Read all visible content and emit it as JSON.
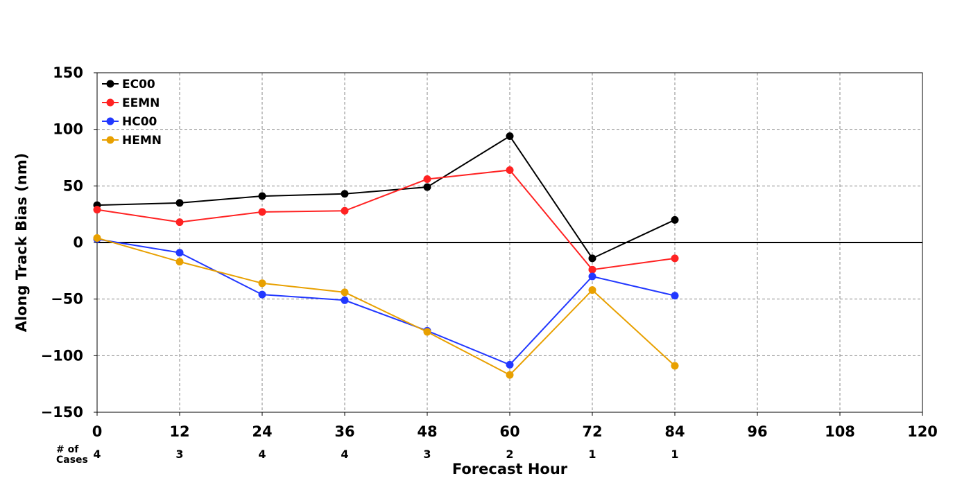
{
  "chart_data": {
    "type": "line",
    "xlabel": "Forecast Hour",
    "ylabel": "Along Track Bias (nm)",
    "xlim": [
      0,
      120
    ],
    "ylim": [
      -150,
      150
    ],
    "x_ticks": [
      0,
      12,
      24,
      36,
      48,
      60,
      72,
      84,
      96,
      108,
      120
    ],
    "y_ticks": [
      -150,
      -100,
      -50,
      0,
      50,
      100,
      150
    ],
    "grid": true,
    "legend_position": "top-left",
    "x": [
      0,
      12,
      24,
      36,
      48,
      60,
      72,
      84
    ],
    "series": [
      {
        "name": "EC00",
        "color": "#000000",
        "values": [
          33,
          35,
          41,
          43,
          49,
          94,
          -14,
          20
        ]
      },
      {
        "name": "EEMN",
        "color": "#ff2222",
        "values": [
          29,
          18,
          27,
          28,
          56,
          64,
          -24,
          -14
        ]
      },
      {
        "name": "HC00",
        "color": "#2238ff",
        "values": [
          3,
          -9,
          -46,
          -51,
          -78,
          -108,
          -30,
          -47
        ]
      },
      {
        "name": "HEMN",
        "color": "#e8a000",
        "values": [
          4,
          -17,
          -36,
          -44,
          -79,
          -117,
          -42,
          -109
        ]
      }
    ],
    "cases_label_line1": "# of",
    "cases_label_line2": "Cases",
    "cases_x": [
      0,
      12,
      24,
      36,
      48,
      60,
      72,
      84
    ],
    "cases": [
      "4",
      "3",
      "4",
      "4",
      "3",
      "2",
      "1",
      "1"
    ]
  }
}
